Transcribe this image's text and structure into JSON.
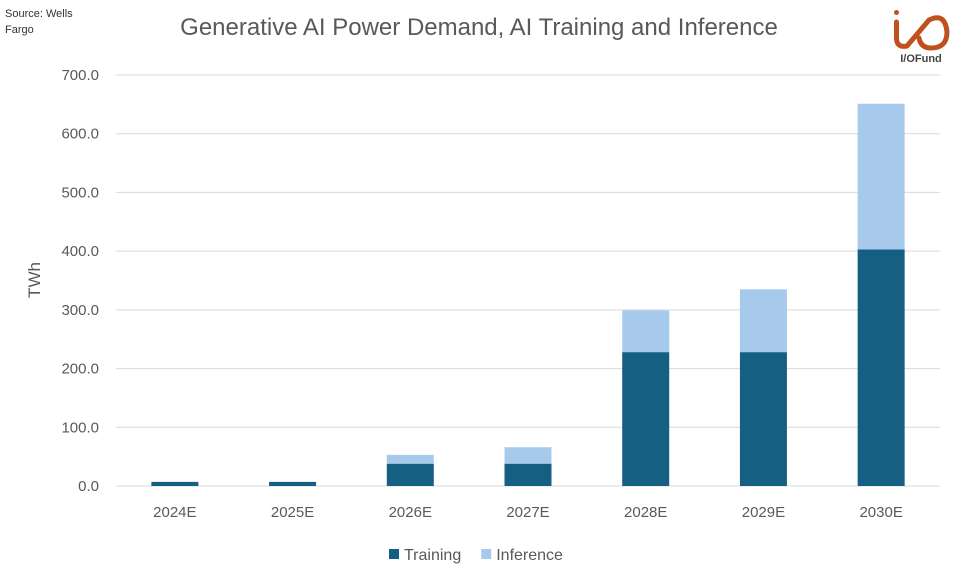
{
  "source": "Source: Wells Fargo",
  "logo_text": "I/OFund",
  "chart_data": {
    "type": "bar",
    "stacked": true,
    "title": "Generative AI Power Demand, AI Training and Inference",
    "xlabel": "",
    "ylabel": "TWh",
    "ylim": [
      0,
      700
    ],
    "yticks": [
      "0.0",
      "100.0",
      "200.0",
      "300.0",
      "400.0",
      "500.0",
      "600.0",
      "700.0"
    ],
    "grid": true,
    "legend": "bottom",
    "categories": [
      "2024E",
      "2025E",
      "2026E",
      "2027E",
      "2028E",
      "2029E",
      "2030E"
    ],
    "series": [
      {
        "name": "Training",
        "color": "#155F83",
        "values": [
          7,
          7,
          38,
          38,
          228,
          228,
          403
        ]
      },
      {
        "name": "Inference",
        "color": "#A7CAEC",
        "values": [
          0,
          0,
          15,
          28,
          71,
          107,
          248
        ]
      }
    ]
  }
}
